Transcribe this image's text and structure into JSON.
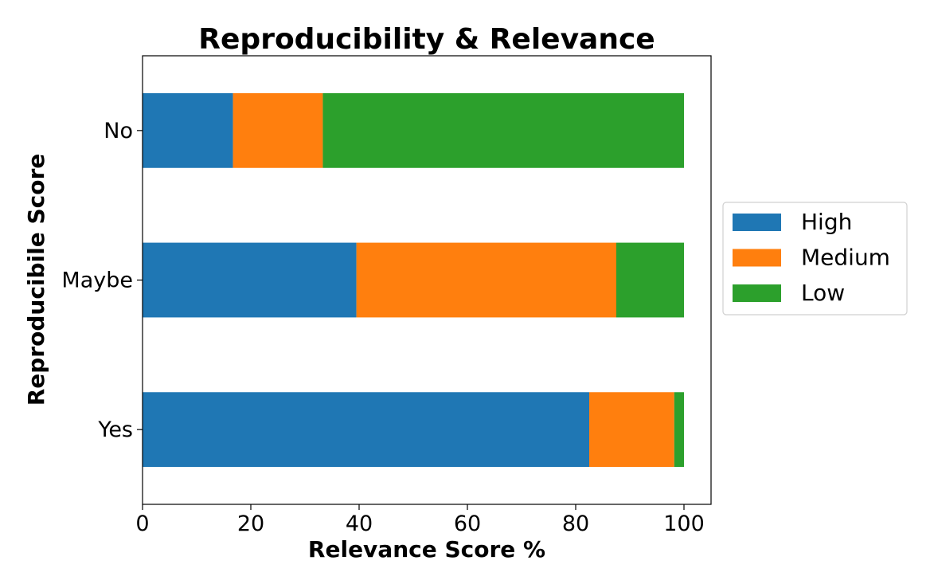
{
  "chart_data": {
    "type": "bar",
    "orientation": "horizontal",
    "stacked": true,
    "title": "Reproducibility & Relevance",
    "xlabel": "Relevance Score %",
    "ylabel": "Reproducibile Score",
    "categories": [
      "Yes",
      "Maybe",
      "No"
    ],
    "x_ticks": [
      "0",
      "20",
      "40",
      "60",
      "80",
      "100"
    ],
    "xlim": [
      0,
      105
    ],
    "grid": false,
    "legend_position": "right",
    "series": [
      {
        "name": "High",
        "color": "#1f77b4",
        "values": [
          82.5,
          39.5,
          16.7
        ]
      },
      {
        "name": "Medium",
        "color": "#ff7f0e",
        "values": [
          15.7,
          48.0,
          16.6
        ]
      },
      {
        "name": "Low",
        "color": "#2ca02c",
        "values": [
          1.8,
          12.5,
          66.7
        ]
      }
    ]
  }
}
